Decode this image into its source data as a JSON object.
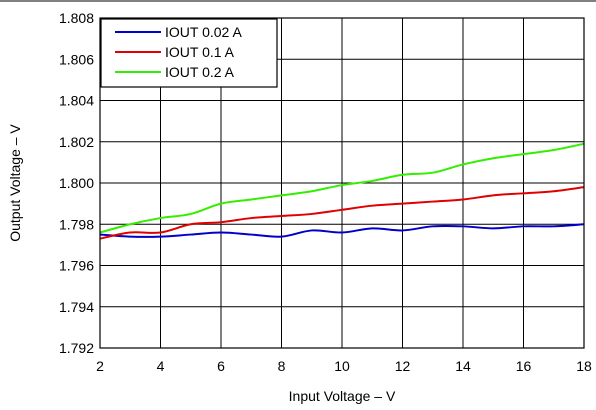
{
  "chart_data": {
    "type": "line",
    "xlabel": "Input Voltage – V",
    "ylabel": "Output Voltage – V",
    "xlim": [
      2,
      18
    ],
    "ylim": [
      1.792,
      1.808
    ],
    "x_ticks": [
      "2",
      "4",
      "6",
      "8",
      "10",
      "12",
      "14",
      "16",
      "18"
    ],
    "y_ticks": [
      "1.808",
      "1.806",
      "1.804",
      "1.802",
      "1.800",
      "1.798",
      "1.796",
      "1.794",
      "1.792"
    ],
    "grid": true,
    "legend_position": "top-left",
    "series": [
      {
        "name": "IOUT 0.02 A",
        "color": "#0000cc",
        "x": [
          2,
          3,
          4,
          5,
          6,
          7,
          8,
          9,
          10,
          11,
          12,
          13,
          14,
          15,
          16,
          17,
          18
        ],
        "y": [
          1.7975,
          1.7974,
          1.7974,
          1.7975,
          1.7976,
          1.7975,
          1.7974,
          1.7977,
          1.7976,
          1.7978,
          1.7977,
          1.7979,
          1.7979,
          1.7978,
          1.7979,
          1.7979,
          1.798
        ]
      },
      {
        "name": "IOUT 0.1 A",
        "color": "#e00000",
        "x": [
          2,
          3,
          4,
          5,
          6,
          7,
          8,
          9,
          10,
          11,
          12,
          13,
          14,
          15,
          16,
          17,
          18
        ],
        "y": [
          1.7973,
          1.7976,
          1.7976,
          1.798,
          1.7981,
          1.7983,
          1.7984,
          1.7985,
          1.7987,
          1.7989,
          1.799,
          1.7991,
          1.7992,
          1.7994,
          1.7995,
          1.7996,
          1.7998
        ]
      },
      {
        "name": "IOUT 0.2 A",
        "color": "#33ee00",
        "x": [
          2,
          3,
          4,
          5,
          6,
          7,
          8,
          9,
          10,
          11,
          12,
          13,
          14,
          15,
          16,
          17,
          18
        ],
        "y": [
          1.7976,
          1.798,
          1.7983,
          1.7985,
          1.799,
          1.7992,
          1.7994,
          1.7996,
          1.7999,
          1.8001,
          1.8004,
          1.8005,
          1.8009,
          1.8012,
          1.8014,
          1.8016,
          1.8019
        ]
      }
    ]
  }
}
